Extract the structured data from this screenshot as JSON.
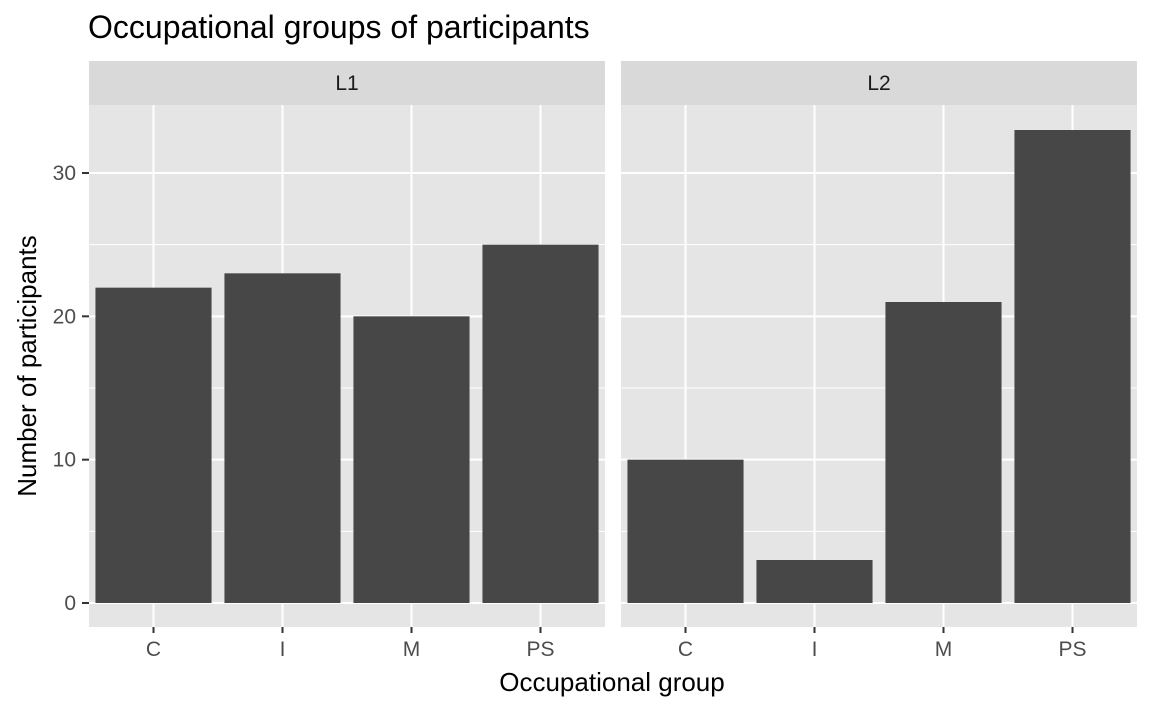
{
  "chart_data": {
    "type": "bar",
    "title": "Occupational groups of participants",
    "xlabel": "Occupational group",
    "ylabel": "Number of participants",
    "categories": [
      "C",
      "I",
      "M",
      "PS"
    ],
    "ylim": [
      0,
      35
    ],
    "yticks": [
      0,
      10,
      20,
      30
    ],
    "grid": true,
    "facets": [
      {
        "name": "L1",
        "values": [
          22,
          23,
          20,
          25
        ]
      },
      {
        "name": "L2",
        "values": [
          10,
          3,
          21,
          33
        ]
      }
    ],
    "colors": {
      "bar": "#474747",
      "panel": "#e5e5e5",
      "strip": "#d9d9d9",
      "grid": "#ffffff"
    }
  }
}
